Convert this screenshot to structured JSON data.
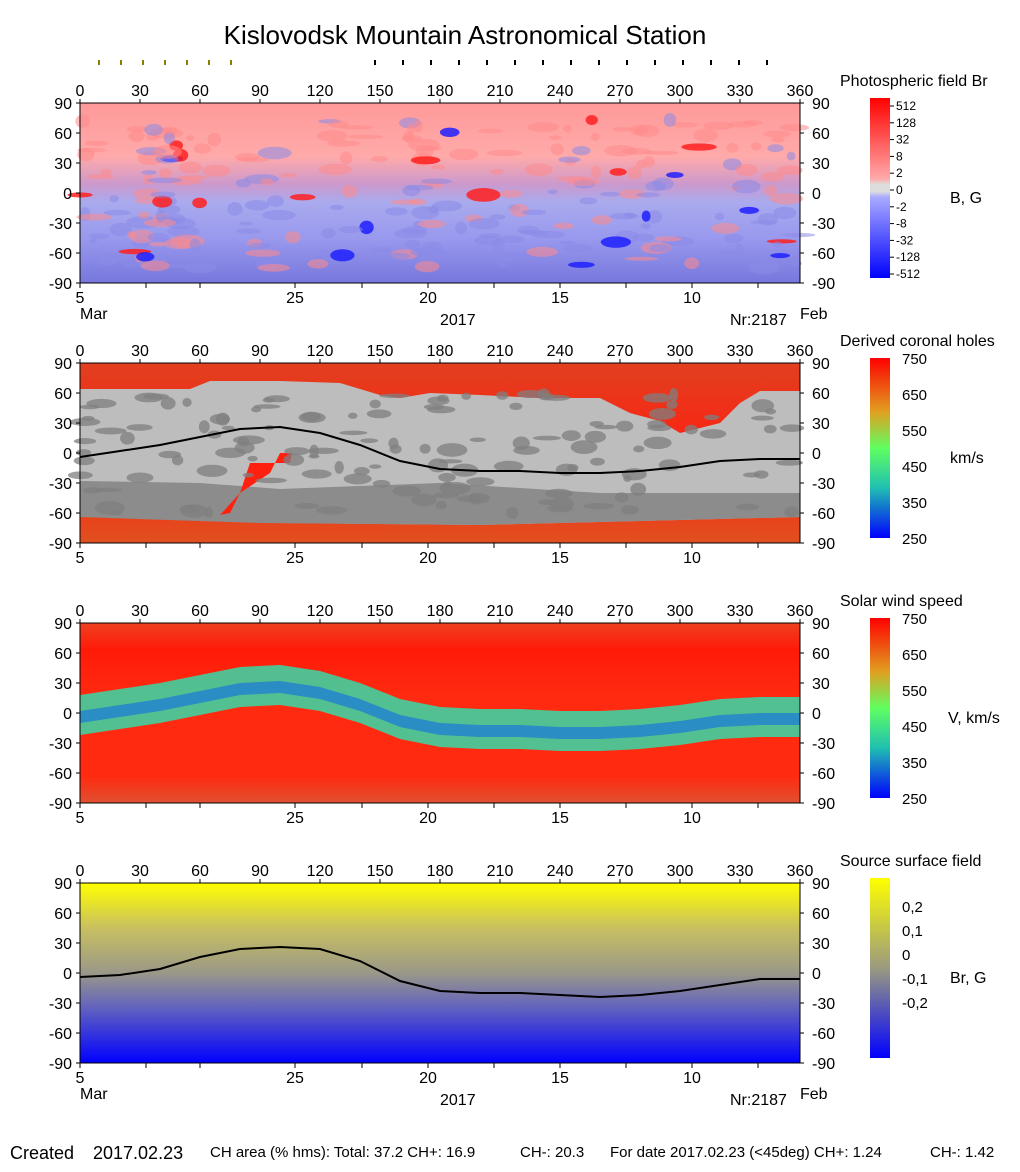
{
  "title": "Kislovodsk Mountain Astronomical Station",
  "footer": {
    "created_label": "Created",
    "created_date": "2017.02.23",
    "ch_area": "CH area (% hms): Total: 37.2 CH+: 16.9",
    "ch_minus": "CH-: 20.3",
    "for_date": "For date 2017.02.23 (<45deg) CH+: 1.24",
    "for_date_ch_minus": "CH-: 1.42"
  },
  "axes": {
    "longitude_ticks": [
      "0",
      "30",
      "60",
      "90",
      "120",
      "150",
      "180",
      "210",
      "240",
      "270",
      "300",
      "330",
      "360"
    ],
    "latitude_ticks": [
      "90",
      "60",
      "30",
      "0",
      "-30",
      "-60",
      "-90"
    ],
    "date_ticks": [
      "5",
      "25",
      "20",
      "15",
      "10"
    ],
    "month_left": "Mar",
    "month_right": "Feb",
    "year": "2017",
    "rotation": "Nr:2187"
  },
  "chart_data": [
    {
      "type": "heatmap",
      "title": "Photospheric field Br",
      "unit": "B, G",
      "x_range": [
        0,
        360
      ],
      "y_range": [
        -90,
        90
      ],
      "colorbar_ticks": [
        "512",
        "128",
        "32",
        "8",
        "2",
        "0",
        "-2",
        "-8",
        "-32",
        "-128",
        "-512"
      ],
      "colors": {
        "positive": "#ff8080",
        "negative": "#8888ee",
        "strong_positive": "#ff0000",
        "strong_negative": "#0000ff",
        "zero": "#dddddd"
      }
    },
    {
      "type": "heatmap",
      "title": "Derived coronal holes",
      "unit": "km/s",
      "x_range": [
        0,
        360
      ],
      "y_range": [
        -90,
        90
      ],
      "colorbar_ticks": [
        "750",
        "650",
        "550",
        "450",
        "350",
        "250"
      ],
      "neutral_line": [
        [
          0,
          -4
        ],
        [
          20,
          2
        ],
        [
          40,
          8
        ],
        [
          60,
          16
        ],
        [
          80,
          24
        ],
        [
          100,
          26
        ],
        [
          120,
          20
        ],
        [
          140,
          8
        ],
        [
          160,
          -8
        ],
        [
          180,
          -16
        ],
        [
          200,
          -18
        ],
        [
          220,
          -18
        ],
        [
          240,
          -20
        ],
        [
          260,
          -20
        ],
        [
          280,
          -18
        ],
        [
          300,
          -14
        ],
        [
          320,
          -8
        ],
        [
          340,
          -6
        ],
        [
          360,
          -6
        ]
      ],
      "colors": {
        "hole_light": "#bdbdbd",
        "hole_dark": "#7f7f7f",
        "background": "#ff2a10"
      }
    },
    {
      "type": "heatmap",
      "title": "Solar wind speed",
      "unit": "V, km/s",
      "x_range": [
        0,
        360
      ],
      "y_range": [
        -90,
        90
      ],
      "colorbar_ticks": [
        "750",
        "650",
        "550",
        "450",
        "350",
        "250"
      ]
    },
    {
      "type": "heatmap",
      "title": "Source surface field",
      "unit": "Br, G",
      "x_range": [
        0,
        360
      ],
      "y_range": [
        -90,
        90
      ],
      "colorbar_ticks": [
        "0,2",
        "0,1",
        "0",
        "-0,1",
        "-0,2"
      ],
      "neutral_line": [
        [
          0,
          -4
        ],
        [
          20,
          -2
        ],
        [
          40,
          4
        ],
        [
          60,
          16
        ],
        [
          80,
          24
        ],
        [
          100,
          26
        ],
        [
          120,
          24
        ],
        [
          140,
          12
        ],
        [
          160,
          -8
        ],
        [
          180,
          -18
        ],
        [
          200,
          -20
        ],
        [
          220,
          -20
        ],
        [
          240,
          -22
        ],
        [
          260,
          -24
        ],
        [
          280,
          -22
        ],
        [
          300,
          -18
        ],
        [
          320,
          -12
        ],
        [
          340,
          -6
        ],
        [
          360,
          -6
        ]
      ]
    }
  ]
}
